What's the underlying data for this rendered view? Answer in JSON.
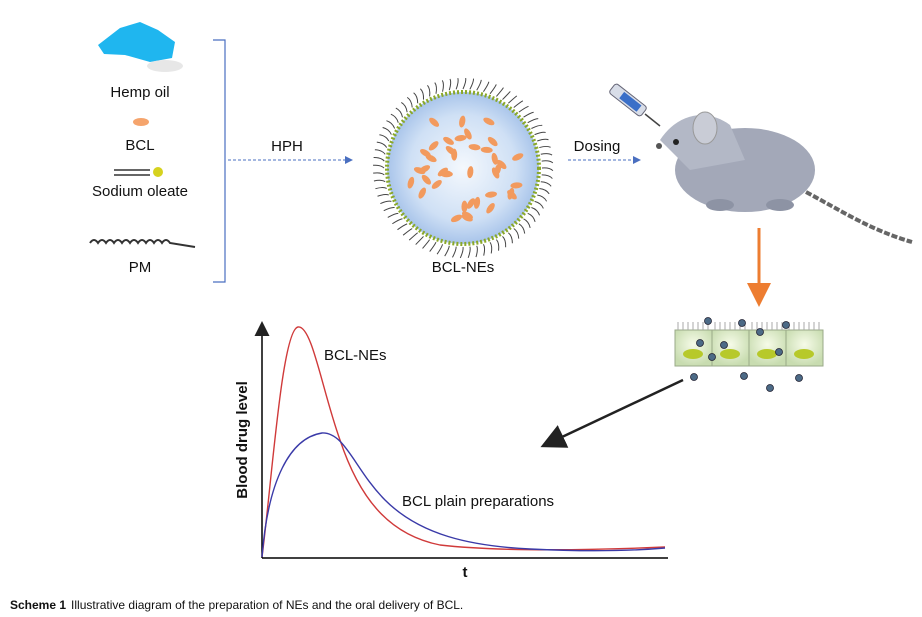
{
  "ingredients": [
    "Hemp oil",
    "BCL",
    "Sodium oleate",
    "PM"
  ],
  "process": {
    "step1": "HPH",
    "product": "BCL-NEs",
    "step2": "Dosing"
  },
  "graph": {
    "y_label": "Blood drug level",
    "x_label": "t",
    "curve1": "BCL-NEs",
    "curve2": "BCL plain preparations"
  },
  "caption": {
    "label": "Scheme 1",
    "text": "Illustrative diagram of the preparation of NEs and the oral delivery of BCL."
  }
}
